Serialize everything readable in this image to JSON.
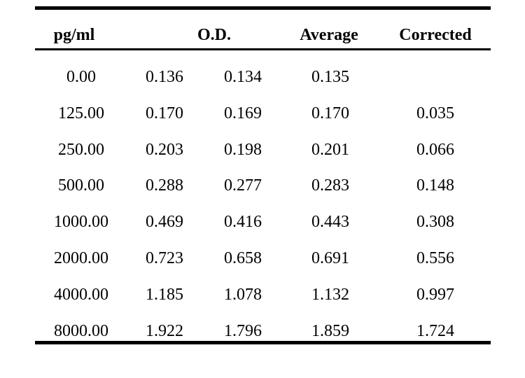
{
  "table": {
    "headers": {
      "conc": "pg/ml",
      "od": "O.D.",
      "average": "Average",
      "corrected": "Corrected"
    },
    "rows": [
      {
        "conc": "0.00",
        "od1": "0.136",
        "od2": "0.134",
        "average": "0.135",
        "corrected": ""
      },
      {
        "conc": "125.00",
        "od1": "0.170",
        "od2": "0.169",
        "average": "0.170",
        "corrected": "0.035"
      },
      {
        "conc": "250.00",
        "od1": "0.203",
        "od2": "0.198",
        "average": "0.201",
        "corrected": "0.066"
      },
      {
        "conc": "500.00",
        "od1": "0.288",
        "od2": "0.277",
        "average": "0.283",
        "corrected": "0.148"
      },
      {
        "conc": "1000.00",
        "od1": "0.469",
        "od2": "0.416",
        "average": "0.443",
        "corrected": "0.308"
      },
      {
        "conc": "2000.00",
        "od1": "0.723",
        "od2": "0.658",
        "average": "0.691",
        "corrected": "0.556"
      },
      {
        "conc": "4000.00",
        "od1": "1.185",
        "od2": "1.078",
        "average": "1.132",
        "corrected": "0.997"
      },
      {
        "conc": "8000.00",
        "od1": "1.922",
        "od2": "1.796",
        "average": "1.859",
        "corrected": "1.724"
      }
    ]
  }
}
